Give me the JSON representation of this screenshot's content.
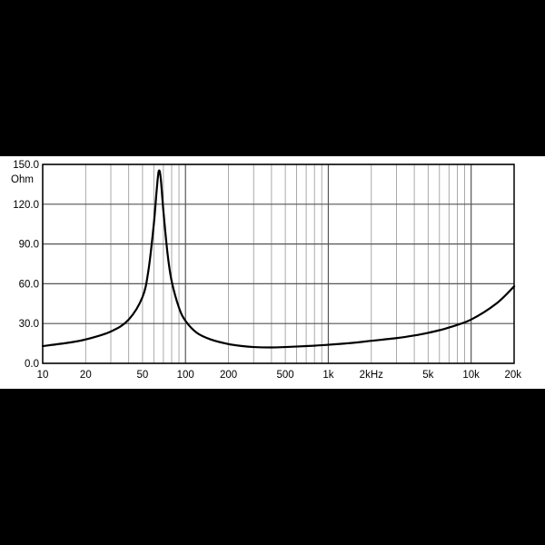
{
  "chart_data": {
    "type": "line",
    "title": "",
    "xlabel": "",
    "ylabel": "Ohm",
    "x_scale": "log",
    "xlim": [
      10,
      20000
    ],
    "ylim": [
      0,
      150
    ],
    "grid": true,
    "y_ticks": [
      0,
      30,
      60,
      90,
      120,
      150
    ],
    "y_tick_labels": [
      "0.0",
      "30.0",
      "60.0",
      "90.0",
      "120.0",
      "150.0"
    ],
    "x_ticks": [
      10,
      20,
      50,
      100,
      200,
      500,
      1000,
      2000,
      5000,
      10000,
      20000
    ],
    "x_tick_labels": [
      "10",
      "20",
      "50",
      "100",
      "200",
      "500",
      "1k",
      "2kHz",
      "5k",
      "10k",
      "20k"
    ],
    "series": [
      {
        "x": [
          10,
          15,
          20,
          30,
          40,
          50,
          55,
          60,
          63,
          65,
          67,
          70,
          75,
          80,
          90,
          100,
          120,
          150,
          200,
          250,
          300,
          400,
          500,
          700,
          1000,
          1500,
          2000,
          3000,
          4000,
          5000,
          6000,
          7000,
          10000,
          15000,
          20000
        ],
        "y": [
          13,
          15.5,
          18,
          24,
          33,
          50,
          70,
          105,
          132,
          145,
          140,
          115,
          82,
          62,
          42,
          32,
          23,
          18,
          14.5,
          13,
          12.3,
          12,
          12.3,
          13,
          14,
          15.5,
          17,
          19,
          21,
          23,
          25,
          27,
          33,
          45,
          58
        ],
        "color": "#000000"
      }
    ]
  }
}
